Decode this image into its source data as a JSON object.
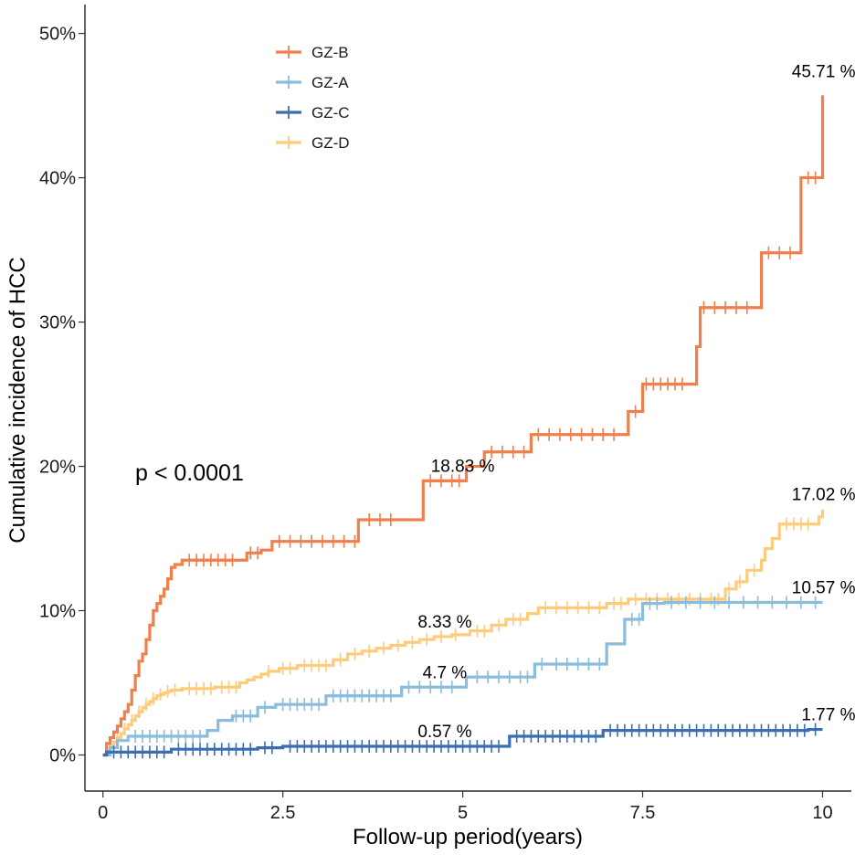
{
  "chart_data": {
    "type": "line",
    "title": "",
    "xlabel": "Follow-up period(years)",
    "ylabel": "Cumulative incidence of HCC",
    "xlim": [
      -0.25,
      10.4
    ],
    "ylim": [
      -0.025,
      0.52
    ],
    "x_ticks": [
      {
        "value": 0,
        "label": "0"
      },
      {
        "value": 2.5,
        "label": "2.5"
      },
      {
        "value": 5,
        "label": "5"
      },
      {
        "value": 7.5,
        "label": "7.5"
      },
      {
        "value": 10,
        "label": "10"
      }
    ],
    "y_ticks": [
      {
        "value": 0,
        "label": "0%"
      },
      {
        "value": 0.1,
        "label": "10%"
      },
      {
        "value": 0.2,
        "label": "20%"
      },
      {
        "value": 0.3,
        "label": "30%"
      },
      {
        "value": 0.4,
        "label": "40%"
      },
      {
        "value": 0.5,
        "label": "50%"
      }
    ],
    "p_value_text": "p < 0.0001",
    "legend_position": "top-left",
    "series": [
      {
        "name": "GZ-B",
        "color": "#F07F4B",
        "steps": [
          [
            0,
            0
          ],
          [
            0.05,
            0.008
          ],
          [
            0.1,
            0.012
          ],
          [
            0.15,
            0.016
          ],
          [
            0.2,
            0.02
          ],
          [
            0.25,
            0.025
          ],
          [
            0.3,
            0.03
          ],
          [
            0.35,
            0.035
          ],
          [
            0.4,
            0.045
          ],
          [
            0.45,
            0.055
          ],
          [
            0.5,
            0.065
          ],
          [
            0.55,
            0.07
          ],
          [
            0.6,
            0.08
          ],
          [
            0.65,
            0.09
          ],
          [
            0.7,
            0.1
          ],
          [
            0.75,
            0.105
          ],
          [
            0.8,
            0.11
          ],
          [
            0.85,
            0.115
          ],
          [
            0.9,
            0.122
          ],
          [
            0.95,
            0.13
          ],
          [
            1.0,
            0.132
          ],
          [
            1.1,
            0.135
          ],
          [
            2.0,
            0.14
          ],
          [
            2.2,
            0.142
          ],
          [
            2.35,
            0.148
          ],
          [
            3.55,
            0.163
          ],
          [
            4.45,
            0.19
          ],
          [
            5.05,
            0.2
          ],
          [
            5.3,
            0.21
          ],
          [
            5.95,
            0.222
          ],
          [
            7.3,
            0.238
          ],
          [
            7.5,
            0.257
          ],
          [
            8.25,
            0.283
          ],
          [
            8.3,
            0.31
          ],
          [
            9.15,
            0.348
          ],
          [
            9.7,
            0.4
          ],
          [
            10.0,
            0.4571
          ]
        ],
        "censor_x": [
          1.2,
          1.3,
          1.4,
          1.5,
          1.6,
          1.7,
          1.8,
          2.05,
          2.15,
          2.45,
          2.6,
          2.75,
          2.9,
          3.05,
          3.2,
          3.35,
          3.5,
          3.7,
          3.85,
          4.0,
          4.55,
          4.7,
          4.85,
          4.95,
          5.4,
          5.55,
          5.7,
          5.85,
          6.05,
          6.2,
          6.35,
          6.5,
          6.65,
          6.8,
          6.95,
          7.1,
          7.4,
          7.55,
          7.65,
          7.75,
          7.85,
          7.95,
          8.05,
          8.35,
          8.5,
          8.65,
          8.8,
          8.95,
          9.25,
          9.4,
          9.55,
          9.8,
          9.9
        ],
        "end_label": "45.71 %",
        "mid_label": "18.83 %",
        "mid_label_x": 5.0
      },
      {
        "name": "GZ-A",
        "color": "#8ABCDB",
        "steps": [
          [
            0,
            0
          ],
          [
            0.1,
            0.005
          ],
          [
            0.2,
            0.01
          ],
          [
            0.35,
            0.013
          ],
          [
            1.45,
            0.017
          ],
          [
            1.6,
            0.024
          ],
          [
            1.8,
            0.027
          ],
          [
            2.15,
            0.033
          ],
          [
            2.4,
            0.035
          ],
          [
            3.1,
            0.041
          ],
          [
            4.15,
            0.047
          ],
          [
            5.05,
            0.054
          ],
          [
            6.0,
            0.063
          ],
          [
            7.0,
            0.077
          ],
          [
            7.25,
            0.094
          ],
          [
            7.5,
            0.105
          ],
          [
            7.8,
            0.1057
          ],
          [
            10.0,
            0.1057
          ]
        ],
        "censor_x": [
          0.45,
          0.55,
          0.65,
          0.75,
          0.85,
          0.95,
          1.05,
          1.15,
          1.25,
          1.35,
          1.85,
          1.95,
          2.05,
          2.25,
          2.5,
          2.6,
          2.7,
          2.8,
          2.9,
          3.0,
          3.2,
          3.3,
          3.4,
          3.5,
          3.6,
          3.7,
          3.8,
          3.9,
          4.0,
          4.25,
          4.4,
          4.55,
          4.7,
          4.85,
          5.2,
          5.35,
          5.5,
          5.65,
          5.8,
          5.9,
          6.1,
          6.3,
          6.45,
          6.6,
          6.75,
          6.9,
          7.35,
          7.45,
          7.6,
          7.7,
          7.9,
          8.1,
          8.3,
          8.5,
          8.7,
          8.9,
          9.1,
          9.3,
          9.5,
          9.7,
          9.9
        ],
        "end_label": "10.57 %",
        "mid_label": "4.7 %",
        "mid_label_x": 4.75
      },
      {
        "name": "GZ-C",
        "color": "#3D6DB1",
        "steps": [
          [
            0,
            0
          ],
          [
            0.05,
            0.002
          ],
          [
            0.95,
            0.004
          ],
          [
            2.15,
            0.005
          ],
          [
            2.5,
            0.006
          ],
          [
            5.65,
            0.013
          ],
          [
            6.95,
            0.017
          ],
          [
            9.8,
            0.0177
          ],
          [
            10.0,
            0.0177
          ]
        ],
        "censor_x": [
          0.15,
          0.25,
          0.35,
          0.45,
          0.55,
          0.65,
          0.75,
          0.85,
          1.05,
          1.15,
          1.25,
          1.35,
          1.45,
          1.55,
          1.65,
          1.75,
          1.85,
          1.95,
          2.05,
          2.25,
          2.35,
          2.6,
          2.7,
          2.8,
          2.9,
          3.0,
          3.1,
          3.2,
          3.3,
          3.4,
          3.5,
          3.6,
          3.7,
          3.8,
          3.9,
          4.0,
          4.1,
          4.2,
          4.3,
          4.4,
          4.5,
          4.6,
          4.7,
          4.8,
          4.9,
          5.0,
          5.1,
          5.2,
          5.3,
          5.4,
          5.5,
          5.75,
          5.85,
          5.95,
          6.05,
          6.15,
          6.25,
          6.35,
          6.45,
          6.55,
          6.65,
          6.75,
          6.85,
          7.05,
          7.15,
          7.25,
          7.35,
          7.45,
          7.55,
          7.65,
          7.75,
          7.85,
          7.95,
          8.05,
          8.15,
          8.25,
          8.35,
          8.45,
          8.55,
          8.65,
          8.75,
          8.85,
          8.95,
          9.05,
          9.15,
          9.25,
          9.35,
          9.45,
          9.55,
          9.65,
          9.75,
          9.9
        ],
        "end_label": "1.77 %",
        "mid_label": "0.57 %",
        "mid_label_x": 4.75
      },
      {
        "name": "GZ-D",
        "color": "#FDCB7A",
        "steps": [
          [
            0,
            0
          ],
          [
            0.05,
            0.003
          ],
          [
            0.1,
            0.006
          ],
          [
            0.15,
            0.009
          ],
          [
            0.2,
            0.012
          ],
          [
            0.25,
            0.015
          ],
          [
            0.3,
            0.018
          ],
          [
            0.35,
            0.021
          ],
          [
            0.4,
            0.024
          ],
          [
            0.45,
            0.027
          ],
          [
            0.5,
            0.03
          ],
          [
            0.55,
            0.033
          ],
          [
            0.6,
            0.035
          ],
          [
            0.65,
            0.037
          ],
          [
            0.7,
            0.039
          ],
          [
            0.75,
            0.041
          ],
          [
            0.8,
            0.042
          ],
          [
            0.85,
            0.043
          ],
          [
            0.9,
            0.044
          ],
          [
            0.95,
            0.045
          ],
          [
            1.1,
            0.046
          ],
          [
            1.55,
            0.047
          ],
          [
            1.9,
            0.05
          ],
          [
            2.0,
            0.052
          ],
          [
            2.1,
            0.054
          ],
          [
            2.2,
            0.056
          ],
          [
            2.3,
            0.058
          ],
          [
            2.45,
            0.06
          ],
          [
            2.7,
            0.062
          ],
          [
            3.2,
            0.066
          ],
          [
            3.4,
            0.07
          ],
          [
            3.6,
            0.072
          ],
          [
            3.8,
            0.074
          ],
          [
            4.0,
            0.076
          ],
          [
            4.2,
            0.078
          ],
          [
            4.4,
            0.08
          ],
          [
            4.6,
            0.082
          ],
          [
            4.85,
            0.0833
          ],
          [
            5.1,
            0.086
          ],
          [
            5.4,
            0.09
          ],
          [
            5.6,
            0.094
          ],
          [
            5.9,
            0.098
          ],
          [
            6.05,
            0.102
          ],
          [
            7.0,
            0.105
          ],
          [
            7.3,
            0.108
          ],
          [
            8.65,
            0.115
          ],
          [
            8.8,
            0.12
          ],
          [
            8.95,
            0.128
          ],
          [
            9.15,
            0.135
          ],
          [
            9.2,
            0.143
          ],
          [
            9.3,
            0.15
          ],
          [
            9.4,
            0.16
          ],
          [
            9.95,
            0.165
          ],
          [
            10.0,
            0.1702
          ]
        ],
        "censor_x": [
          0.2,
          0.3,
          0.4,
          0.5,
          0.6,
          0.7,
          0.8,
          0.9,
          1.0,
          1.2,
          1.3,
          1.4,
          1.5,
          1.65,
          1.75,
          1.85,
          2.3,
          2.5,
          2.6,
          2.8,
          2.9,
          3.0,
          3.1,
          3.3,
          3.5,
          3.7,
          3.9,
          4.1,
          4.3,
          4.5,
          4.7,
          4.9,
          5.2,
          5.3,
          5.5,
          5.7,
          5.8,
          6.15,
          6.3,
          6.45,
          6.6,
          6.75,
          6.9,
          7.1,
          7.2,
          7.4,
          7.55,
          7.7,
          7.85,
          8.0,
          8.15,
          8.3,
          8.45,
          8.55,
          8.7,
          8.85,
          9.05,
          9.5,
          9.6,
          9.7,
          9.8
        ],
        "end_label": "17.02 %",
        "mid_label": "8.33 %",
        "mid_label_x": 4.75
      }
    ]
  }
}
